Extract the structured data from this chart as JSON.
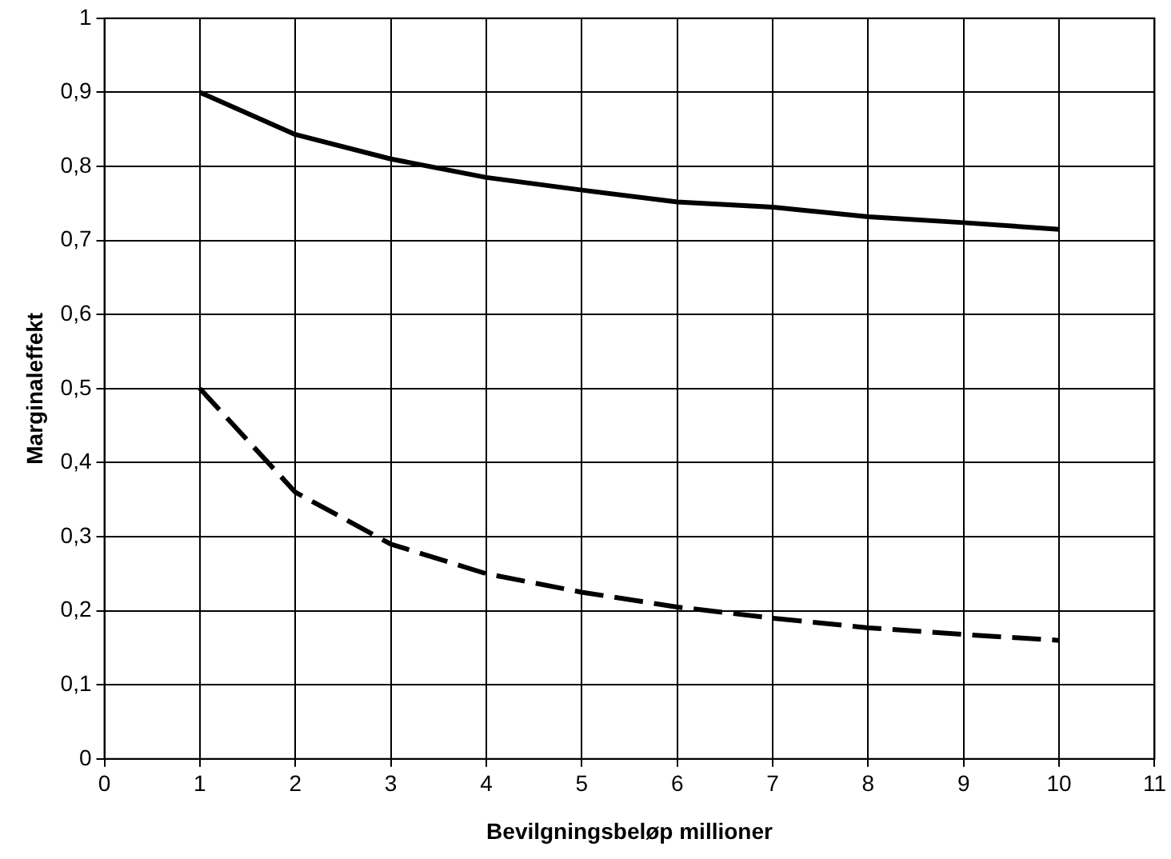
{
  "chart_data": {
    "type": "line",
    "xlabel": "Bevilgningsbeløp millioner",
    "ylabel": "Marginaleffekt",
    "x": [
      1,
      2,
      3,
      4,
      5,
      6,
      7,
      8,
      9,
      10
    ],
    "series": [
      {
        "color": "#000000",
        "line_style": "solid",
        "values": [
          0.9,
          0.843,
          0.81,
          0.785,
          0.768,
          0.752,
          0.745,
          0.732,
          0.724,
          0.715
        ]
      },
      {
        "color": "#000000",
        "line_style": "dashed",
        "values": [
          0.5,
          0.36,
          0.29,
          0.25,
          0.225,
          0.205,
          0.19,
          0.177,
          0.168,
          0.16
        ]
      }
    ],
    "xlim": [
      0,
      11
    ],
    "xticks": [
      0,
      1,
      2,
      3,
      4,
      5,
      6,
      7,
      8,
      9,
      10,
      11
    ],
    "ylim": [
      0,
      1
    ],
    "yticks": [
      0,
      {
        "value": 0.1,
        "label": "0,1"
      },
      {
        "value": 0.2,
        "label": "0,2"
      },
      {
        "value": 0.3,
        "label": "0,3"
      },
      {
        "value": 0.4,
        "label": "0,4"
      },
      {
        "value": 0.5,
        "label": "0,5"
      },
      {
        "value": 0.6,
        "label": "0,6"
      },
      {
        "value": 0.7,
        "label": "0,7"
      },
      {
        "value": 0.8,
        "label": "0,8"
      },
      {
        "value": 0.9,
        "label": "0,9"
      },
      1
    ],
    "grid": true,
    "legend": false,
    "marker": "none"
  }
}
